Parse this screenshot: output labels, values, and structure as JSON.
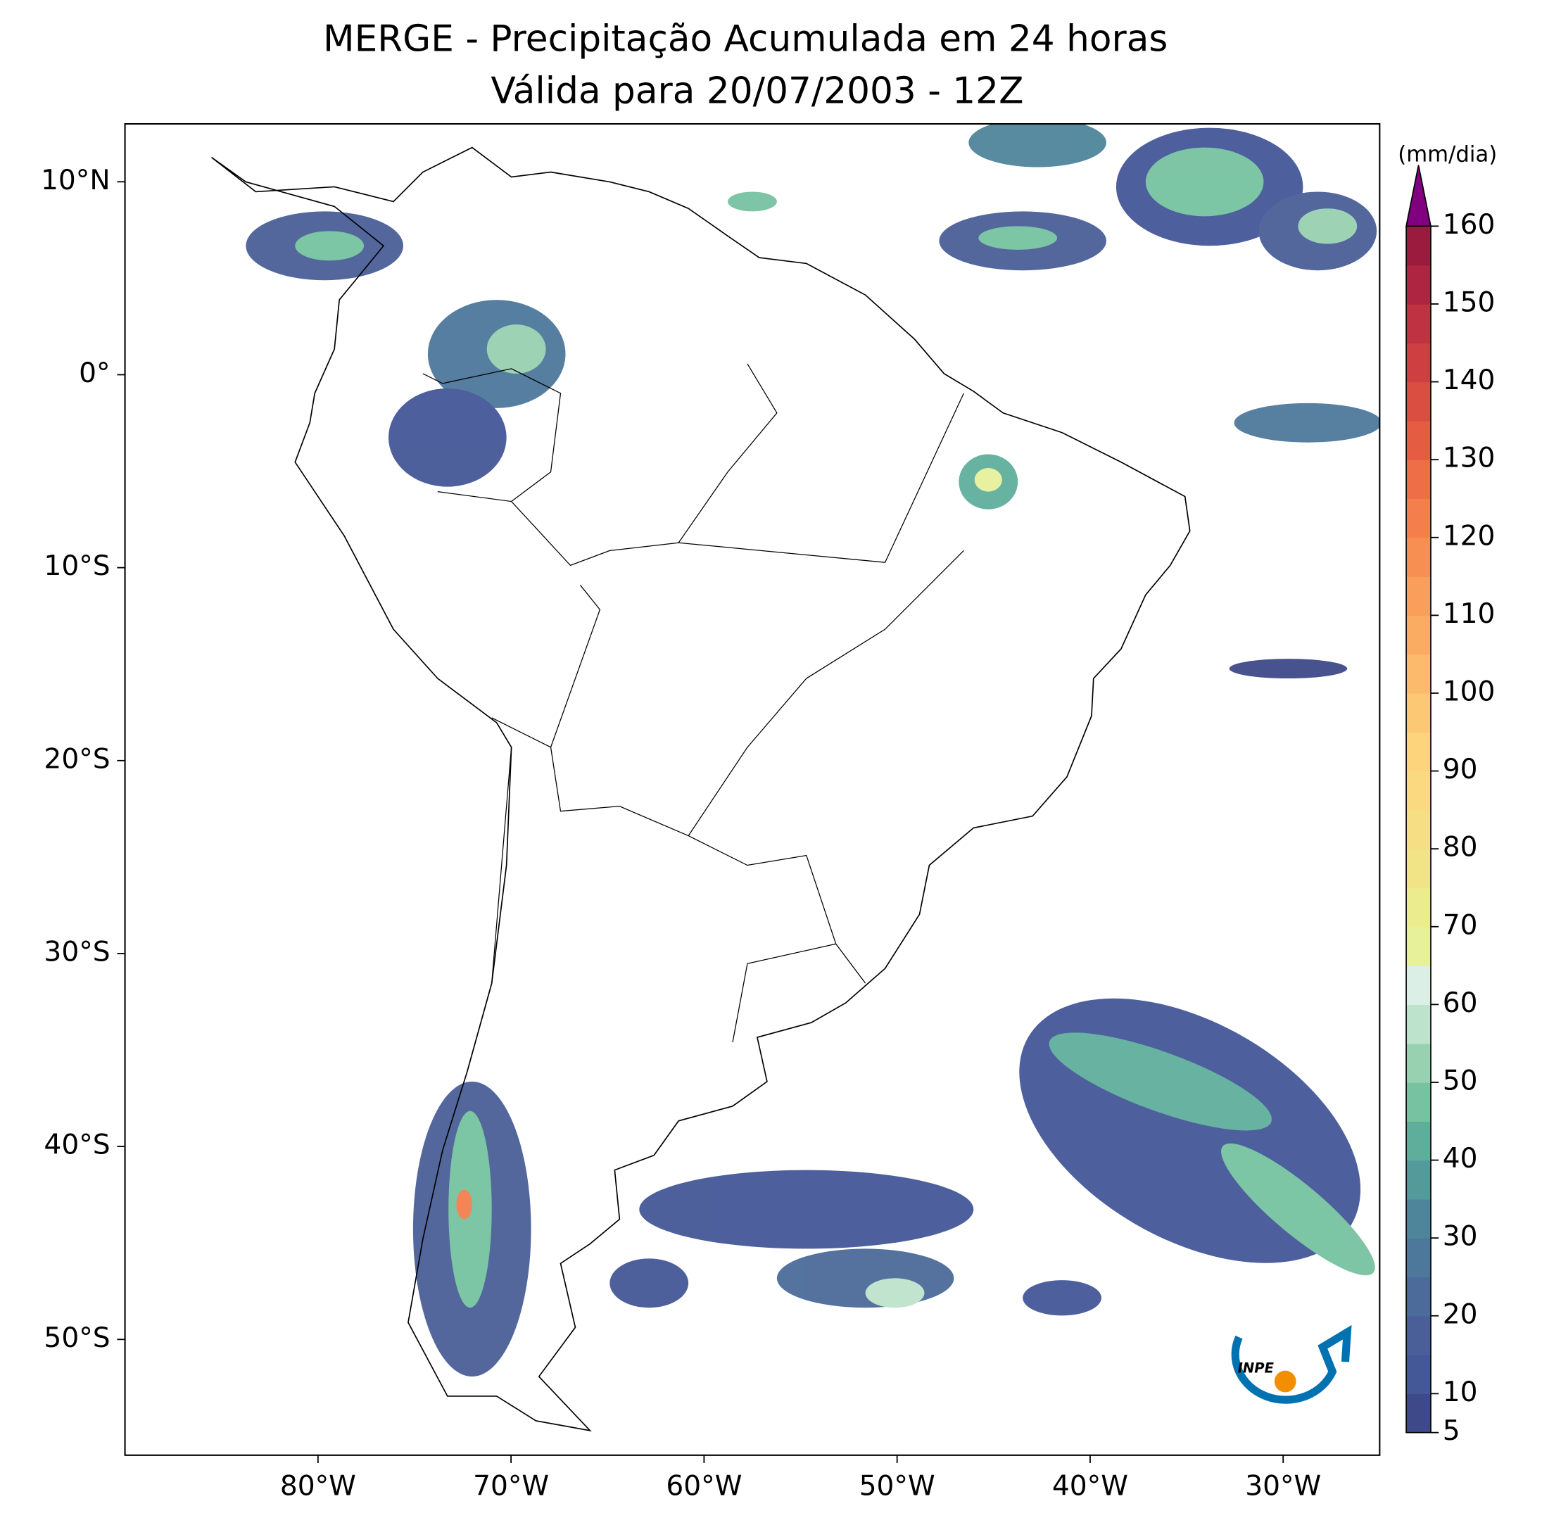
{
  "map": {
    "title": [
      "MERGE - Precipitação Acumulada em 24 horas",
      "Válida para 20/07/2003 - 12Z"
    ],
    "xlim": [
      -90,
      -25
    ],
    "ylim": [
      -56,
      13
    ],
    "xticks": [
      {
        "value": -80,
        "label": "80°W"
      },
      {
        "value": -70,
        "label": "70°W"
      },
      {
        "value": -60,
        "label": "60°W"
      },
      {
        "value": -50,
        "label": "50°W"
      },
      {
        "value": -40,
        "label": "40°W"
      },
      {
        "value": -30,
        "label": "30°W"
      }
    ],
    "yticks": [
      {
        "value": 10,
        "label": "10°N"
      },
      {
        "value": 0,
        "label": "0°"
      },
      {
        "value": -10,
        "label": "10°S"
      },
      {
        "value": -20,
        "label": "20°S"
      },
      {
        "value": -30,
        "label": "30°S"
      },
      {
        "value": -40,
        "label": "40°S"
      },
      {
        "value": -50,
        "label": "50°S"
      }
    ],
    "colorbar": {
      "label": "(mm/dia)",
      "lim": [
        5,
        160
      ],
      "ticks": [
        5,
        10,
        20,
        30,
        40,
        50,
        60,
        70,
        80,
        90,
        100,
        110,
        120,
        130,
        140,
        150,
        160
      ],
      "levels": [
        5,
        10,
        15,
        20,
        25,
        30,
        35,
        40,
        45,
        50,
        55,
        60,
        65,
        70,
        75,
        80,
        85,
        90,
        95,
        100,
        105,
        110,
        115,
        120,
        125,
        130,
        135,
        140,
        145,
        150,
        155,
        160
      ],
      "colors": [
        "#3e4989",
        "#445797",
        "#4a5f98",
        "#4c6b9a",
        "#4e789b",
        "#4f859b",
        "#549a9b",
        "#5fae9c",
        "#76c2a1",
        "#98d1b0",
        "#bde3cc",
        "#dcefe7",
        "#e6f19a",
        "#ebec8e",
        "#f0e487",
        "#f6de85",
        "#fbd981",
        "#fdd47c",
        "#fdc874",
        "#fcbb6c",
        "#fbac63",
        "#f99e5b",
        "#f78f53",
        "#f47f4d",
        "#ee6e48",
        "#e45d43",
        "#d94e41",
        "#cd3f40",
        "#be3241",
        "#ad2540",
        "#9b1b3e"
      ],
      "extend_color": "#800080"
    },
    "logo": "INPE"
  }
}
